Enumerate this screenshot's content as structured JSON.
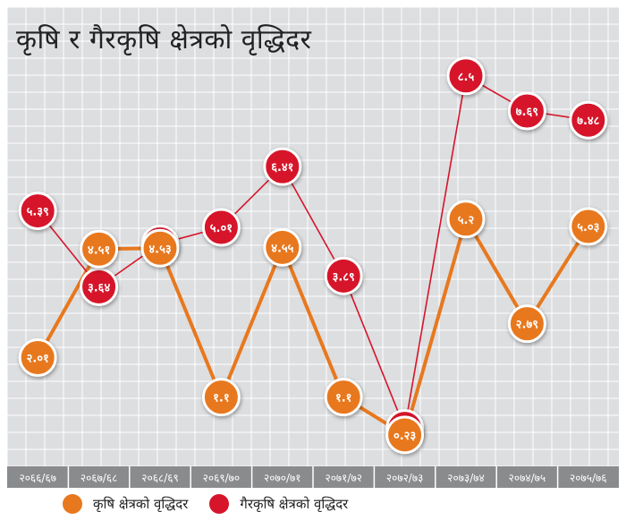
{
  "chart_data": {
    "type": "line",
    "title": "कृषि र गैरकृषि क्षेत्रको वृद्धिदर",
    "categories": [
      "२०६६/६७",
      "२०६७/६८",
      "२०६८/६९",
      "२०६९/७०",
      "२०७०/७१",
      "२०७१/७२",
      "२०७२/७३",
      "२०७३/७४",
      "२०७४/७५",
      "२०७५/७६"
    ],
    "series": [
      {
        "name": "कृषि क्षेत्रको वृद्धिदर",
        "color": "#e8781e",
        "values": [
          2.01,
          4.51,
          4.53,
          1.1,
          4.55,
          1.1,
          0.23,
          5.2,
          2.79,
          5.03
        ],
        "labels": [
          "२.०१",
          "४.५१",
          "४.५३",
          "१.१",
          "४.५५",
          "१.१",
          "०.२३",
          "५.२",
          "२.७९",
          "५.०३"
        ]
      },
      {
        "name": "गैरकृषि क्षेत्रको वृद्धिदर",
        "color": "#d6152a",
        "values": [
          5.39,
          3.64,
          4.63,
          5.01,
          6.41,
          3.89,
          0.38,
          8.5,
          7.69,
          7.48
        ],
        "labels": [
          "५.३९",
          "३.६४",
          "४.६३",
          "५.०१",
          "६.४१",
          "३.८९",
          "०.३८",
          "८.५",
          "७.६९",
          "७.४८"
        ]
      }
    ],
    "grid": true,
    "legend_position": "bottom-left",
    "background": "#dcdee0",
    "grid_color": "#ffffff",
    "axis_band_color": "#8a8b8d"
  }
}
